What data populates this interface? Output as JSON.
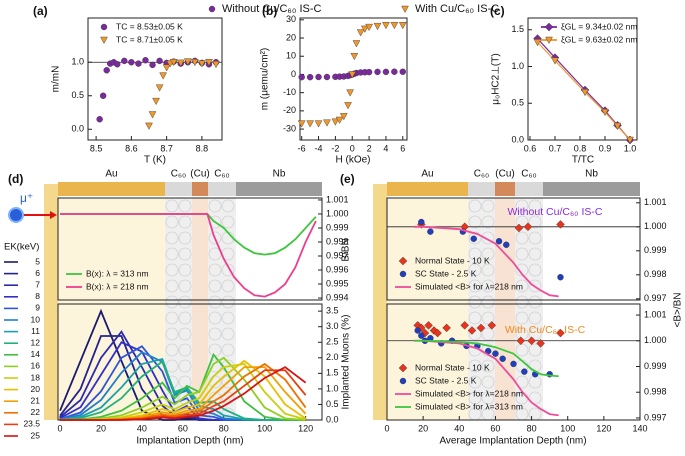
{
  "figure_legend": [
    {
      "name": "Without Cu/C₆₀ IS-C",
      "color": "#7b2a9e",
      "marker": "circle"
    },
    {
      "name": "With Cu/C₆₀ IS-C",
      "color": "#f0962a",
      "marker": "triangle"
    }
  ],
  "chart_data": [
    {
      "type": "scatter",
      "panel": "(a)",
      "xlabel": "T (K)",
      "ylabel": "m/mN",
      "xlim": [
        8.477,
        8.857
      ],
      "ylim": [
        -0.16,
        1.66
      ],
      "xticks": [
        8.5,
        8.6,
        8.7,
        8.8
      ],
      "yticks": [
        {
          "value": 0,
          "label": "0.0"
        },
        0.5,
        {
          "value": 1,
          "label": "1.0"
        }
      ],
      "hline": 1,
      "legend": "upper left",
      "series": [
        {
          "name": "TC = 8.53±0.05 K",
          "color": "#7b2a9e",
          "marker": "circle",
          "x": [
            8.51,
            8.52,
            8.53,
            8.54,
            8.55,
            8.56,
            8.58,
            8.6,
            8.62,
            8.64,
            8.66,
            8.68,
            8.7,
            8.72,
            8.74,
            8.76,
            8.78,
            8.8,
            8.82,
            8.84
          ],
          "values": [
            0.15,
            0.5,
            0.88,
            0.98,
            1.0,
            0.97,
            1.02,
            1.0,
            0.98,
            1.03,
            0.96,
            1.02,
            0.99,
            1.01,
            0.98,
            1.0,
            1.02,
            0.99,
            0.97,
            1.0
          ]
        },
        {
          "name": "TC = 8.71±0.05 K",
          "color": "#f0962a",
          "marker": "triangle",
          "x": [
            8.65,
            8.66,
            8.67,
            8.68,
            8.69,
            8.7,
            8.71,
            8.72,
            8.74,
            8.76,
            8.78,
            8.8,
            8.82,
            8.84
          ],
          "values": [
            0.05,
            0.22,
            0.42,
            0.62,
            0.8,
            0.92,
            0.98,
            1.0,
            0.99,
            1.01,
            1.0,
            0.98,
            1.0,
            0.97
          ]
        }
      ]
    },
    {
      "type": "scatter",
      "panel": "(b)",
      "xlabel": "H (kOe)",
      "ylabel": "m (μemu/cm²)",
      "xlim": [
        -6.2,
        6.5
      ],
      "ylim": [
        -36,
        31
      ],
      "xticks": [
        -6,
        -4,
        -2,
        0,
        2,
        4,
        6
      ],
      "yticks": [
        -30,
        -20,
        -10,
        0,
        10,
        20,
        30
      ],
      "x": [
        -6,
        -5,
        -4,
        -3,
        -2,
        -1.5,
        -1,
        -0.5,
        -0.25,
        0,
        0.25,
        0.5,
        1,
        1.5,
        2,
        3,
        4,
        5,
        6
      ],
      "series": [
        {
          "color": "#7b2a9e",
          "marker": "circle",
          "values": [
            -1.5,
            -1.5,
            -1.4,
            -1.4,
            -1.3,
            -1.2,
            -1.1,
            -0.8,
            -0.4,
            0,
            0.4,
            0.8,
            1.1,
            1.2,
            1.3,
            1.4,
            1.4,
            1.5,
            1.5
          ]
        },
        {
          "color": "#f0962a",
          "marker": "triangle",
          "values": [
            -27,
            -27,
            -27,
            -26.5,
            -26,
            -25,
            -23,
            -17,
            -10,
            0,
            10,
            17,
            23,
            25,
            26,
            26.5,
            27,
            27,
            27
          ]
        }
      ]
    },
    {
      "type": "line",
      "panel": "(c)",
      "xlabel": "T/TC",
      "ylabel": "μ₀HC2⊥(T)",
      "xlim": [
        0.592,
        1.028
      ],
      "ylim": [
        0,
        1.66
      ],
      "xticks": [
        0.6,
        0.7,
        0.8,
        0.9,
        {
          "value": 1,
          "label": "1.0"
        }
      ],
      "yticks": [
        {
          "value": 0,
          "label": "0.0"
        },
        0.5,
        {
          "value": 1,
          "label": "1.0"
        },
        1.5
      ],
      "legend": "upper right",
      "x": [
        0.63,
        0.7,
        0.82,
        0.9,
        0.95,
        1.0
      ],
      "series": [
        {
          "name": "ξGL = 9.34±0.02 nm",
          "color": "#7b2a9e",
          "marker": "diamond",
          "values": [
            1.38,
            1.12,
            0.68,
            0.4,
            0.2,
            0
          ]
        },
        {
          "name": "ξGL = 9.63±0.02 nm",
          "color": "#f0962a",
          "marker": "triangle",
          "values": [
            1.33,
            1.08,
            0.65,
            0.38,
            0.19,
            0
          ]
        }
      ]
    },
    {
      "type": "line",
      "panel": "(d)",
      "ion": "μ⁺",
      "layers": [
        "Au",
        "C₆₀",
        "(Cu)",
        "C₆₀",
        "Nb"
      ],
      "ylabel": "B/BN",
      "yaxis": "right",
      "xlim": [
        -1,
        128
      ],
      "ylim": [
        0.99386,
        1.00114
      ],
      "yticks": [
        0.994,
        0.995,
        0.996,
        0.997,
        0.998,
        0.999,
        {
          "value": 1,
          "label": "1.000"
        },
        1.001
      ],
      "legend": "lower left",
      "x": [
        0,
        72,
        75,
        80,
        85,
        90,
        95,
        100,
        105,
        110,
        115,
        120,
        125
      ],
      "series": [
        {
          "name": "B(x): λ = 313 nm",
          "color": "#3fc63f",
          "values": [
            1,
            1,
            0.9995,
            0.999,
            0.9982,
            0.9976,
            0.9972,
            0.9971,
            0.9972,
            0.9976,
            0.9982,
            0.999,
            0.9998
          ]
        },
        {
          "name": "B(x): λ = 218 nm",
          "color": "#ee3d8e",
          "values": [
            1,
            1,
            0.9985,
            0.9968,
            0.9955,
            0.9947,
            0.9942,
            0.9941,
            0.9944,
            0.995,
            0.9962,
            0.998,
            0.9995
          ]
        }
      ]
    },
    {
      "type": "line",
      "xlabel": "Implantation Depth (nm)",
      "ylabel": "Implanted Muons (%)",
      "yaxis": "right",
      "xlim": [
        -1,
        128
      ],
      "ylim": [
        0,
        3.73
      ],
      "xticks": [
        0,
        20,
        40,
        60,
        80,
        100,
        120
      ],
      "yticks": [
        {
          "value": 0,
          "label": "0.0"
        },
        0.5,
        {
          "value": 1,
          "label": "1.0"
        },
        1.5,
        {
          "value": 2,
          "label": "2.0"
        },
        2.5,
        {
          "value": 3,
          "label": "3.0"
        },
        3.5
      ],
      "legend": "outside left",
      "legend_title": "EK(keV)",
      "x": [
        0,
        10,
        20,
        30,
        40,
        50,
        56,
        62,
        68,
        75,
        80,
        90,
        100,
        110,
        120
      ],
      "series": [
        {
          "name": "5",
          "color": "#1a1a6e",
          "values": [
            0.3,
            1.9,
            3.5,
            1.9,
            0.3,
            0,
            0,
            0.05,
            0,
            0,
            0,
            0,
            0,
            0,
            0
          ]
        },
        {
          "name": "6",
          "color": "#23238f",
          "values": [
            0.14,
            1.0,
            2.7,
            2.7,
            1.0,
            0.14,
            0.03,
            0.1,
            0,
            0,
            0,
            0,
            0,
            0,
            0
          ]
        },
        {
          "name": "7",
          "color": "#2a2ab0",
          "values": [
            0.09,
            0.64,
            2.0,
            2.84,
            1.7,
            0.46,
            0.14,
            0.2,
            0.02,
            0,
            0,
            0,
            0,
            0,
            0
          ]
        },
        {
          "name": "8",
          "color": "#3030c8",
          "values": [
            0.06,
            0.41,
            1.45,
            2.5,
            2.2,
            0.95,
            0.25,
            0.45,
            0.05,
            0,
            0,
            0,
            0,
            0,
            0
          ]
        },
        {
          "name": "9",
          "color": "#2f55d8",
          "values": [
            0.03,
            0.24,
            0.92,
            2.0,
            2.37,
            1.56,
            0.55,
            0.7,
            0.15,
            0.1,
            0,
            0,
            0,
            0,
            0
          ]
        },
        {
          "name": "10",
          "color": "#1e7fd0",
          "values": [
            0.02,
            0.16,
            0.64,
            1.52,
            2.18,
            1.87,
            0.8,
            0.95,
            0.3,
            0.2,
            0.05,
            0,
            0,
            0,
            0
          ]
        },
        {
          "name": "11",
          "color": "#1aa0b0",
          "values": [
            0.01,
            0.1,
            0.4,
            1.05,
            1.8,
            1.96,
            0.85,
            1.0,
            0.45,
            0.35,
            0.15,
            0.02,
            0,
            0,
            0
          ]
        },
        {
          "name": "12",
          "color": "#20b080",
          "values": [
            0,
            0.06,
            0.25,
            0.7,
            1.4,
            1.88,
            0.9,
            1.05,
            0.55,
            0.6,
            0.35,
            0.05,
            0,
            0,
            0
          ]
        },
        {
          "name": "14",
          "color": "#40c040",
          "values": [
            0,
            0.02,
            0.1,
            0.3,
            0.7,
            1.2,
            0.7,
            1.1,
            0.9,
            2.1,
            1.7,
            0.6,
            0.1,
            0,
            0
          ]
        },
        {
          "name": "16",
          "color": "#8fd020",
          "values": [
            0,
            0,
            0.05,
            0.15,
            0.4,
            0.75,
            0.5,
            0.8,
            0.9,
            1.8,
            2.0,
            1.3,
            0.4,
            0.05,
            0
          ]
        },
        {
          "name": "18",
          "color": "#c8d010",
          "values": [
            0,
            0,
            0.02,
            0.08,
            0.25,
            0.5,
            0.35,
            0.55,
            0.7,
            1.4,
            1.7,
            1.8,
            0.9,
            0.2,
            0.02
          ]
        },
        {
          "name": "20",
          "color": "#e8c000",
          "values": [
            0,
            0,
            0.01,
            0.05,
            0.15,
            0.35,
            0.25,
            0.4,
            0.5,
            1.1,
            1.4,
            1.9,
            1.4,
            0.5,
            0.05
          ]
        },
        {
          "name": "21",
          "color": "#f0a000",
          "values": [
            0,
            0,
            0,
            0.03,
            0.1,
            0.25,
            0.18,
            0.3,
            0.35,
            0.8,
            1.1,
            1.7,
            1.7,
            0.9,
            0.2
          ]
        },
        {
          "name": "22",
          "color": "#f07000",
          "values": [
            0,
            0,
            0,
            0.02,
            0.06,
            0.18,
            0.12,
            0.22,
            0.28,
            0.6,
            0.8,
            1.4,
            1.8,
            1.3,
            0.4
          ]
        },
        {
          "name": "23.5",
          "color": "#e84010",
          "values": [
            0,
            0,
            0,
            0.01,
            0.04,
            0.12,
            0.08,
            0.15,
            0.2,
            0.45,
            0.6,
            1.1,
            1.6,
            1.6,
            0.8
          ]
        },
        {
          "name": "25",
          "color": "#d81010",
          "values": [
            0,
            0,
            0,
            0,
            0.02,
            0.08,
            0.05,
            0.1,
            0.14,
            0.3,
            0.45,
            0.85,
            1.35,
            1.7,
            1.2
          ]
        }
      ]
    },
    {
      "type": "scatter",
      "panel": "(e)",
      "layers": [
        "Au",
        "C₆₀",
        "(Cu)",
        "C₆₀",
        "Nb"
      ],
      "annotation": "Without Cu/C₆₀ IS-C",
      "annotation_color": "#8a2be2",
      "ylabel": "<B>/BN",
      "yaxis": "right",
      "xlim": [
        0,
        140
      ],
      "ylim": [
        0.99695,
        1.0012
      ],
      "yticks": [
        0.997,
        0.998,
        0.999,
        {
          "value": 1,
          "label": "1.000"
        },
        1.001
      ],
      "hline": 1,
      "legend": "lower left",
      "series": [
        {
          "name": "Normal State - 10 K",
          "color": "#e8341c",
          "marker": "diamond",
          "x": [
            19,
            43,
            73,
            78,
            96
          ],
          "values": [
            1.0001,
            1.0,
            0.99995,
            1.0,
            1.0001
          ]
        },
        {
          "name": "SC State - 2.5 K",
          "color": "#1f3fbf",
          "marker": "circle",
          "x": [
            19,
            24,
            42,
            48,
            62,
            66,
            96
          ],
          "values": [
            1.0002,
            0.9998,
            0.9998,
            0.9995,
            0.9994,
            0.99925,
            0.9979
          ]
        },
        {
          "name": "Simulated <B> for λ=218 nm",
          "color": "#ee4d9a",
          "line": true,
          "x": [
            15,
            20,
            30,
            40,
            50,
            60,
            70,
            75,
            80,
            85,
            90,
            95
          ],
          "values": [
            1.0,
            1.0,
            0.99995,
            0.9999,
            0.9997,
            0.9993,
            0.9985,
            0.998,
            0.9976,
            0.99735,
            0.99715,
            0.9971
          ]
        }
      ]
    },
    {
      "type": "scatter",
      "annotation": "With Cu/C₆₀ IS-C",
      "annotation_color": "#f08a1c",
      "xlabel": "Average Implantation Depth (nm)",
      "yaxis": "right",
      "xlim": [
        0,
        140
      ],
      "ylim": [
        0.99692,
        1.00143
      ],
      "xticks": [
        0,
        20,
        40,
        60,
        80,
        100,
        120,
        140
      ],
      "yticks": [
        0.997,
        0.998,
        0.999,
        {
          "value": 1,
          "label": "1.000"
        },
        1.001
      ],
      "hline": 1,
      "legend": "lower left",
      "series": [
        {
          "name": "Normal State - 10 K",
          "color": "#e8341c",
          "marker": "diamond",
          "x": [
            17,
            19,
            21,
            23,
            26,
            28,
            33,
            43,
            47,
            52,
            58,
            74,
            80,
            85,
            96
          ],
          "values": [
            1.0006,
            1.0005,
            1.0003,
            1.0006,
            1.0004,
            1.0003,
            1.0005,
            1.0006,
            1.0004,
            1.0005,
            1.0006,
            1.0,
            1.0,
            0.9999,
            1.0003
          ]
        },
        {
          "name": "SC State - 2.5 K",
          "color": "#1f3fbf",
          "marker": "circle",
          "x": [
            17,
            19,
            21,
            24,
            30,
            36,
            44,
            50,
            56,
            60,
            64,
            70,
            76,
            82,
            90
          ],
          "values": [
            1.0004,
            1.0002,
            1.0,
            1.0001,
            0.9999,
            1.0,
            0.9998,
            0.9998,
            0.9996,
            0.9995,
            0.9993,
            0.9991,
            0.9988,
            0.9987,
            0.9987
          ]
        },
        {
          "name": "Simulated <B> for λ=218 nm",
          "color": "#ee4d9a",
          "line": true,
          "x": [
            15,
            20,
            30,
            40,
            50,
            60,
            70,
            75,
            80,
            85,
            90,
            95
          ],
          "values": [
            1.0,
            1.0,
            0.99995,
            0.9999,
            0.9997,
            0.9993,
            0.9985,
            0.998,
            0.9976,
            0.99735,
            0.99715,
            0.9971
          ]
        },
        {
          "name": "Simulated <B> for λ=313 nm",
          "color": "#3fc63f",
          "line": true,
          "x": [
            15,
            20,
            30,
            40,
            50,
            60,
            70,
            75,
            80,
            85,
            90,
            95
          ],
          "values": [
            1.0,
            1.0,
            0.99998,
            0.99995,
            0.9999,
            0.99975,
            0.9995,
            0.9992,
            0.9989,
            0.9987,
            0.99865,
            0.99862
          ]
        }
      ]
    }
  ]
}
